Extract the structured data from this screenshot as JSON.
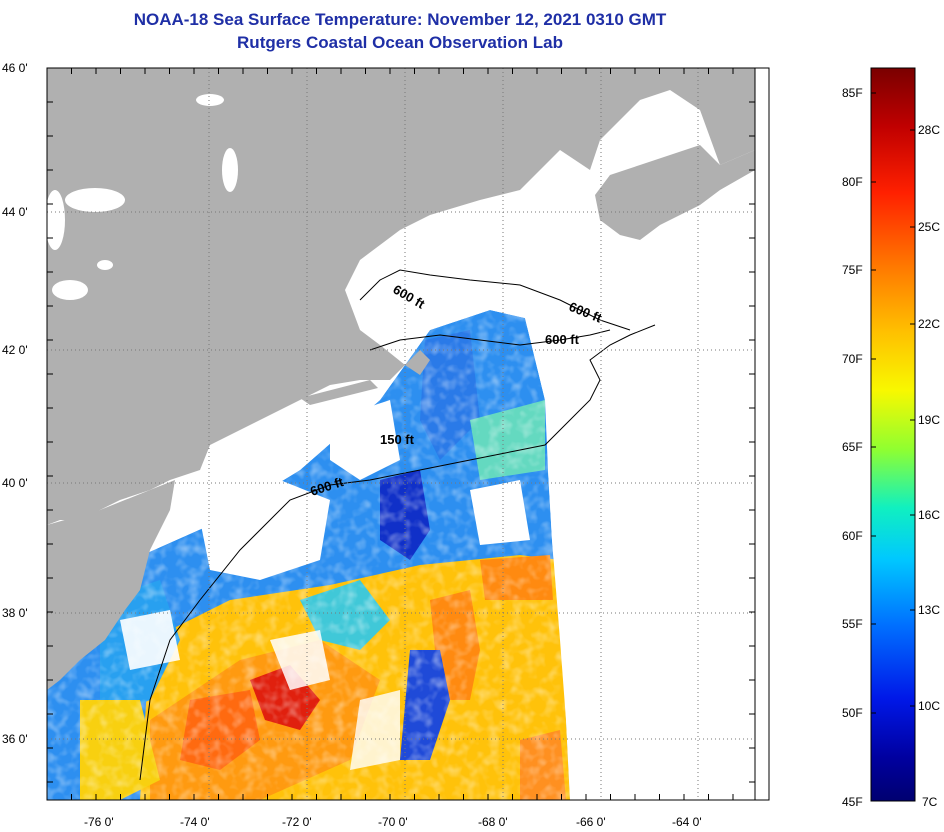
{
  "header": {
    "title": "NOAA-18 Sea Surface Temperature:  November 12, 2021 0310 GMT",
    "subtitle": "Rutgers Coastal Ocean Observation Lab"
  },
  "map": {
    "lat_labels": [
      "46 0'",
      "44 0'",
      "42 0'",
      "40 0'",
      "38 0'",
      "36 0'"
    ],
    "lon_labels": [
      "-76 0'",
      "-74 0'",
      "-72 0'",
      "-70 0'",
      "-68 0'",
      "-66 0'",
      "-64 0'"
    ],
    "contour_labels": [
      "600 ft",
      "600 ft",
      "600 ft",
      "150 ft",
      "600 ft"
    ],
    "land_color": "#b0b0b0",
    "cloud_color": "#ffffff"
  },
  "colorbar": {
    "fahrenheit_labels": [
      "85F",
      "80F",
      "75F",
      "70F",
      "65F",
      "60F",
      "55F",
      "50F",
      "45F"
    ],
    "celsius_labels": [
      "28C",
      "25C",
      "22C",
      "19C",
      "16C",
      "13C",
      "10C",
      "7C"
    ],
    "colors": [
      "#7a0000",
      "#d00000",
      "#ff3000",
      "#ff8000",
      "#ffc000",
      "#f0ff00",
      "#80ff40",
      "#00ffd0",
      "#00a0ff",
      "#0040ff",
      "#0000c0",
      "#00007a"
    ]
  }
}
